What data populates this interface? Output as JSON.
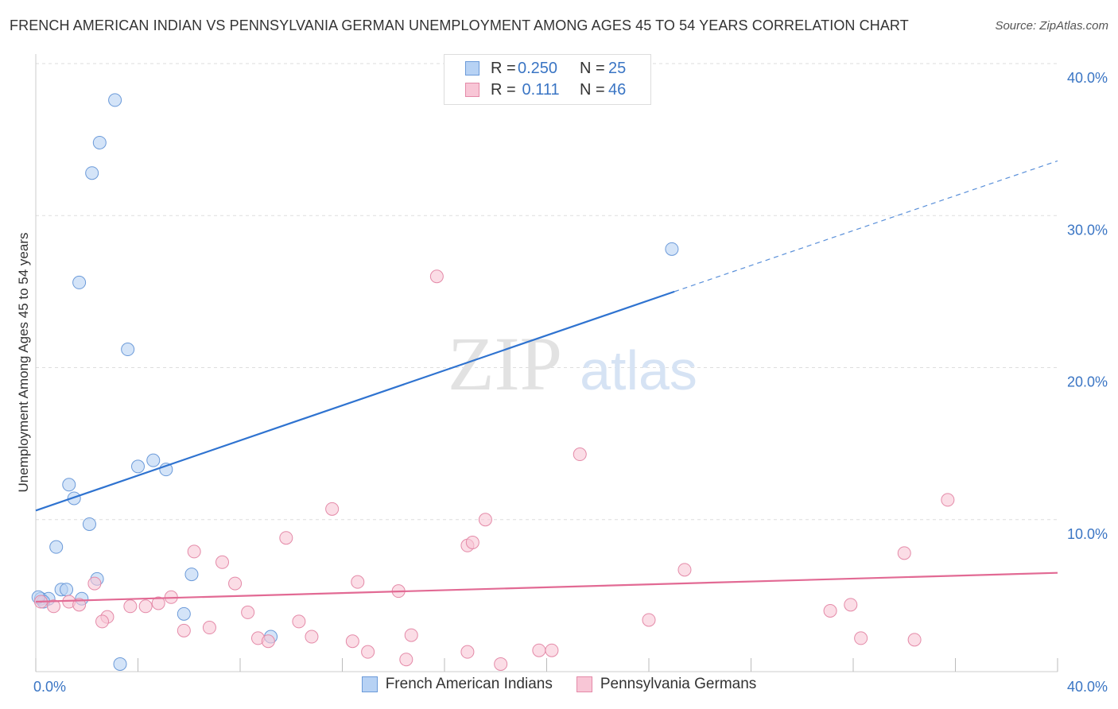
{
  "header": {
    "title": "FRENCH AMERICAN INDIAN VS PENNSYLVANIA GERMAN UNEMPLOYMENT AMONG AGES 45 TO 54 YEARS CORRELATION CHART",
    "source": "Source: ZipAtlas.com"
  },
  "colors": {
    "blue_fill": "#b7d2f4",
    "blue_stroke": "#6b9ad9",
    "blue_line": "#2f73d0",
    "pink_fill": "#f8c6d6",
    "pink_stroke": "#e48aa8",
    "pink_line": "#e26a94",
    "axis_text": "#3a75c4",
    "grid": "#dddddd"
  },
  "legend_top": {
    "rows": [
      {
        "r_label": "R =",
        "r_value": "0.250",
        "n_label": "N =",
        "n_value": "25",
        "series": "blue"
      },
      {
        "r_label": "R =",
        "r_value": " 0.111",
        "n_label": "N =",
        "n_value": "46",
        "series": "pink"
      }
    ]
  },
  "legend_bottom": {
    "items": [
      {
        "label": "French American Indians",
        "series": "blue"
      },
      {
        "label": "Pennsylvania Germans",
        "series": "pink"
      }
    ]
  },
  "watermark": {
    "zip": "ZIP",
    "atlas": "atlas"
  },
  "chart_data": {
    "type": "scatter",
    "title": "FRENCH AMERICAN INDIAN VS PENNSYLVANIA GERMAN UNEMPLOYMENT AMONG AGES 45 TO 54 YEARS CORRELATION CHART",
    "xlabel": "",
    "ylabel": "Unemployment Among Ages 45 to 54 years",
    "xlim": [
      0,
      40
    ],
    "ylim": [
      0,
      40
    ],
    "x_tick_labels": [
      "0.0%",
      "40.0%"
    ],
    "y_tick_values": [
      10,
      20,
      30,
      40
    ],
    "y_tick_labels": [
      "10.0%",
      "20.0%",
      "30.0%",
      "40.0%"
    ],
    "grid": true,
    "series": [
      {
        "name": "French American Indians",
        "color": "blue",
        "R": 0.25,
        "N": 25,
        "trend": {
          "x_start": 0,
          "y_start": 10.6,
          "x_end_solid": 25,
          "y_end_solid": 25.0,
          "x_end_dashed": 40,
          "y_end_dashed": 33.6
        },
        "points": [
          [
            3.1,
            37.6
          ],
          [
            2.5,
            34.8
          ],
          [
            2.2,
            32.8
          ],
          [
            1.7,
            25.6
          ],
          [
            3.6,
            21.2
          ],
          [
            24.9,
            27.8
          ],
          [
            1.3,
            12.3
          ],
          [
            1.5,
            11.4
          ],
          [
            4.0,
            13.5
          ],
          [
            4.6,
            13.9
          ],
          [
            5.1,
            13.3
          ],
          [
            2.1,
            9.7
          ],
          [
            0.8,
            8.2
          ],
          [
            2.4,
            6.1
          ],
          [
            6.1,
            6.4
          ],
          [
            1.0,
            5.4
          ],
          [
            1.2,
            5.4
          ],
          [
            0.2,
            4.8
          ],
          [
            0.5,
            4.8
          ],
          [
            0.3,
            4.6
          ],
          [
            1.8,
            4.8
          ],
          [
            5.8,
            3.8
          ],
          [
            9.2,
            2.3
          ],
          [
            3.3,
            0.5
          ],
          [
            0.1,
            4.9
          ]
        ]
      },
      {
        "name": "Pennsylvania Germans",
        "color": "pink",
        "R": 0.111,
        "N": 46,
        "trend": {
          "x_start": 0,
          "y_start": 4.6,
          "x_end_solid": 40,
          "y_end_solid": 6.5
        },
        "points": [
          [
            15.7,
            26.0
          ],
          [
            21.3,
            14.3
          ],
          [
            35.7,
            11.3
          ],
          [
            11.6,
            10.7
          ],
          [
            17.6,
            10.0
          ],
          [
            16.9,
            8.3
          ],
          [
            17.1,
            8.5
          ],
          [
            9.8,
            8.8
          ],
          [
            6.2,
            7.9
          ],
          [
            7.3,
            7.2
          ],
          [
            34.0,
            7.8
          ],
          [
            25.4,
            6.7
          ],
          [
            2.3,
            5.8
          ],
          [
            7.8,
            5.8
          ],
          [
            12.6,
            5.9
          ],
          [
            14.2,
            5.3
          ],
          [
            5.3,
            4.9
          ],
          [
            1.3,
            4.6
          ],
          [
            0.7,
            4.3
          ],
          [
            1.7,
            4.4
          ],
          [
            3.7,
            4.3
          ],
          [
            4.3,
            4.3
          ],
          [
            4.8,
            4.5
          ],
          [
            8.3,
            3.9
          ],
          [
            2.8,
            3.6
          ],
          [
            2.6,
            3.3
          ],
          [
            10.3,
            3.3
          ],
          [
            6.8,
            2.9
          ],
          [
            5.8,
            2.7
          ],
          [
            8.7,
            2.2
          ],
          [
            9.1,
            2.0
          ],
          [
            10.8,
            2.3
          ],
          [
            12.4,
            2.0
          ],
          [
            13.0,
            1.3
          ],
          [
            14.7,
            2.4
          ],
          [
            14.5,
            0.8
          ],
          [
            16.9,
            1.3
          ],
          [
            18.2,
            0.5
          ],
          [
            19.7,
            1.4
          ],
          [
            20.2,
            1.4
          ],
          [
            24.0,
            3.4
          ],
          [
            31.1,
            4.0
          ],
          [
            31.9,
            4.4
          ],
          [
            32.3,
            2.2
          ],
          [
            34.4,
            2.1
          ],
          [
            0.2,
            4.6
          ]
        ]
      }
    ]
  }
}
